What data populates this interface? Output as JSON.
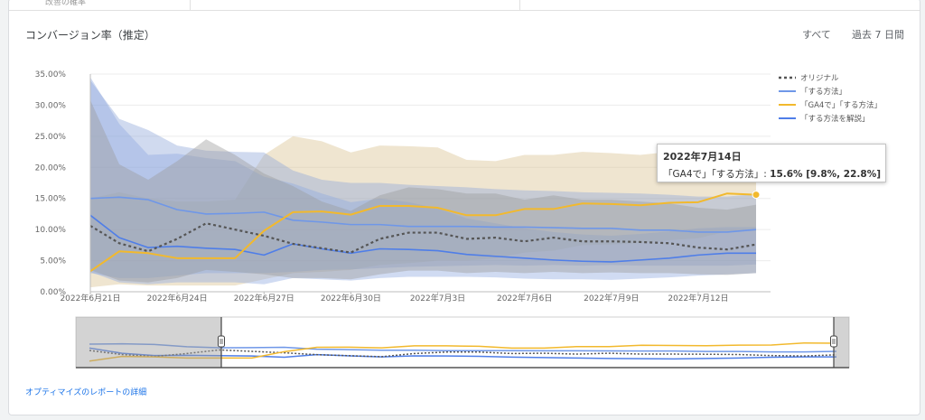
{
  "card": {
    "title": "コンバージョン率（推定）",
    "range_all": "すべて",
    "range_7d": "過去 7 日間",
    "top_fragment": "改善の確率",
    "detail_link": "オプティマイズのレポートの詳細"
  },
  "tooltip": {
    "date": "2022年7月14日",
    "series": "「GA4で」「する方法」",
    "sep": ": ",
    "value": "15.6% [9.8%, 22.8%]"
  },
  "colors": {
    "original": "#555555",
    "suruhouhou": "#6f97e8",
    "ga4": "#f2b92d",
    "kaisetsu": "#4f7ee8",
    "band_original": "#9a9a9a",
    "band_suruhouhou": "#8fa8d8",
    "band_ga4": "#d8c18f",
    "band_kaisetsu": "#8faadf"
  },
  "chart_data": {
    "type": "line",
    "title": "コンバージョン率（推定）",
    "xlabel": "",
    "ylabel": "",
    "ylim": [
      0,
      35
    ],
    "yticks": [
      "0.00%",
      "5.00%",
      "10.00%",
      "15.00%",
      "20.00%",
      "25.00%",
      "30.00%",
      "35.00%"
    ],
    "x": [
      "2022-06-21",
      "2022-06-22",
      "2022-06-23",
      "2022-06-24",
      "2022-06-25",
      "2022-06-26",
      "2022-06-27",
      "2022-06-28",
      "2022-06-29",
      "2022-06-30",
      "2022-07-01",
      "2022-07-02",
      "2022-07-03",
      "2022-07-04",
      "2022-07-05",
      "2022-07-06",
      "2022-07-07",
      "2022-07-08",
      "2022-07-09",
      "2022-07-10",
      "2022-07-11",
      "2022-07-12",
      "2022-07-13",
      "2022-07-14"
    ],
    "xtick_labels": [
      {
        "x": "2022-06-21",
        "label": "2022年6月21日"
      },
      {
        "x": "2022-06-24",
        "label": "2022年6月24日"
      },
      {
        "x": "2022-06-27",
        "label": "2022年6月27日"
      },
      {
        "x": "2022-06-30",
        "label": "2022年6月30日"
      },
      {
        "x": "2022-07-03",
        "label": "2022年7月3日"
      },
      {
        "x": "2022-07-06",
        "label": "2022年7月6日"
      },
      {
        "x": "2022-07-09",
        "label": "2022年7月9日"
      },
      {
        "x": "2022-07-12",
        "label": "2022年7月12日"
      }
    ],
    "legend_position": "right",
    "grid": true,
    "series": [
      {
        "name": "オリジナル",
        "dashed": true,
        "values": [
          10.6,
          7.8,
          6.5,
          8.5,
          11,
          10,
          9,
          7.7,
          7,
          6.3,
          8.5,
          9.5,
          9.5,
          8.5,
          8.7,
          8.1,
          8.7,
          8.1,
          8.1,
          8.0,
          7.8,
          7.1,
          6.8,
          7.6
        ],
        "lower": [
          3.5,
          1.8,
          1.5,
          2.2,
          3.5,
          3.2,
          2.8,
          2.2,
          2.2,
          2,
          2.8,
          3.4,
          3.4,
          3.0,
          3.2,
          3,
          3.2,
          3,
          3.1,
          3,
          3,
          2.8,
          2.7,
          3.0
        ],
        "upper": [
          30.8,
          20.5,
          18,
          21,
          24.5,
          22,
          19,
          17,
          14.5,
          13,
          15.5,
          16.8,
          16.5,
          15.8,
          15.8,
          14.8,
          15.5,
          14.8,
          14.8,
          14.5,
          14.2,
          13.5,
          13.2,
          14.0
        ]
      },
      {
        "name": "「する方法」",
        "dashed": false,
        "values": [
          15,
          15.2,
          14.8,
          13.2,
          12.5,
          12.6,
          12.8,
          11.5,
          11.2,
          10.8,
          10.8,
          10.5,
          10.5,
          10.5,
          10.4,
          10.4,
          10.3,
          10.2,
          10.2,
          9.9,
          9.9,
          9.6,
          9.6,
          10.0
        ],
        "lower": [
          3,
          2.2,
          2.2,
          2.6,
          3,
          3,
          3,
          3.2,
          3.5,
          3.6,
          3.8,
          4,
          4.1,
          4.2,
          4.3,
          4.2,
          4.3,
          4.2,
          4.3,
          4.2,
          4.2,
          4.2,
          4.2,
          4.4
        ],
        "upper": [
          34,
          27.8,
          26,
          23.5,
          22.7,
          22.5,
          22.4,
          19.5,
          18,
          17.5,
          17.5,
          17.2,
          17,
          16.8,
          16.5,
          16.3,
          16.2,
          16,
          15.9,
          15.8,
          15.6,
          15.3,
          15.3,
          15.7
        ]
      },
      {
        "name": "「GA4で」「する方法」",
        "dashed": false,
        "values": [
          3.3,
          6.5,
          6.2,
          5.4,
          5.4,
          5.4,
          9.8,
          12.8,
          12.9,
          12.4,
          13.8,
          13.8,
          13.5,
          12.3,
          12.3,
          13.3,
          13.3,
          14.2,
          14.1,
          13.9,
          14.3,
          14.4,
          15.8,
          15.6
        ],
        "lower": [
          0.7,
          1.2,
          1.0,
          1.0,
          1.0,
          1.0,
          2,
          3,
          3.2,
          3.5,
          4.3,
          4.6,
          5.0,
          5.0,
          5.4,
          6.3,
          6.6,
          7.5,
          7.6,
          7.8,
          8.3,
          8.6,
          9.7,
          9.8
        ],
        "upper": [
          15,
          16,
          15,
          14.5,
          14.5,
          14.8,
          22,
          25,
          24.2,
          22.4,
          23.5,
          23.4,
          23.2,
          21.2,
          21,
          22,
          22,
          22.5,
          22.3,
          22,
          22.5,
          22.5,
          23,
          22.8
        ]
      },
      {
        "name": "「する方法を解説」",
        "dashed": false,
        "values": [
          12.3,
          8.7,
          7.1,
          7.3,
          7.0,
          6.8,
          5.9,
          7.7,
          6.9,
          6.2,
          6.9,
          6.8,
          6.6,
          6.0,
          5.7,
          5.4,
          5.1,
          4.9,
          4.8,
          5.1,
          5.4,
          5.9,
          6.2,
          6.2
        ],
        "lower": [
          3.2,
          1.5,
          1.2,
          1.5,
          1.5,
          1.5,
          1.2,
          2.2,
          2,
          1.8,
          2.2,
          2.4,
          2.4,
          2.4,
          2.3,
          2.1,
          2.0,
          2.0,
          1.9,
          2.1,
          2.3,
          2.6,
          2.8,
          3.0
        ],
        "upper": [
          34.5,
          27,
          22,
          22.2,
          21.5,
          21,
          18.5,
          17.4,
          15.8,
          14.4,
          15,
          14.4,
          13.4,
          11.8,
          11,
          10.2,
          9.6,
          9.2,
          9,
          9.3,
          9.7,
          10.2,
          10.4,
          10.4
        ]
      }
    ]
  }
}
